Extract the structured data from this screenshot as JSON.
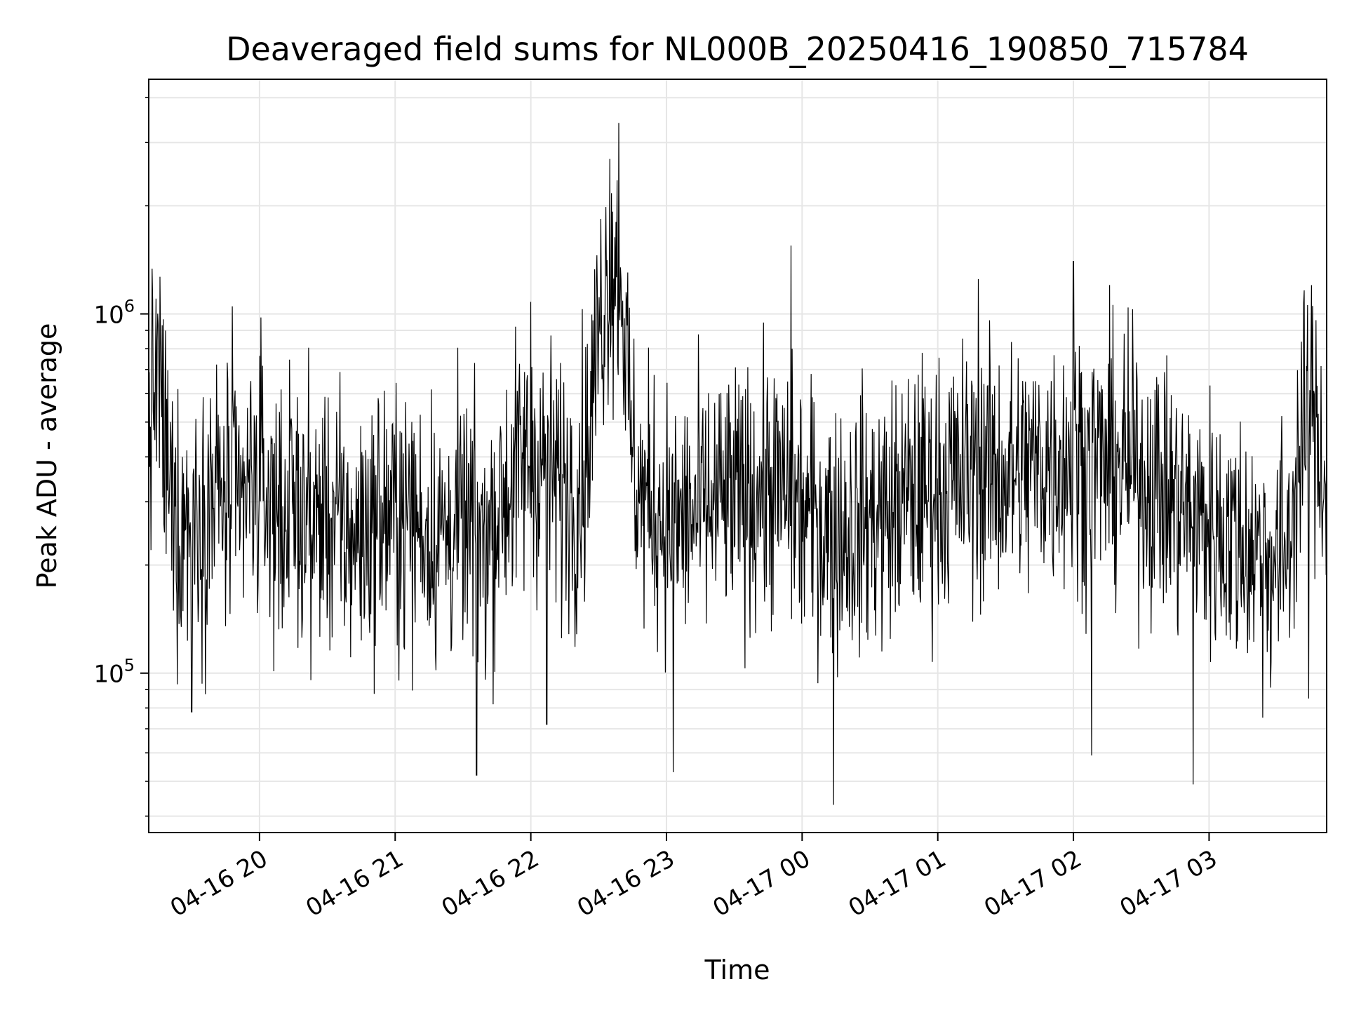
{
  "chart_data": {
    "type": "line",
    "title": "Deaveraged field sums for NL000B_20250416_190850_715784",
    "xlabel": "Time",
    "ylabel": "Peak ADU - average",
    "x_range": [
      "2025-04-16 19:11",
      "2025-04-17 03:52"
    ],
    "xticks": [
      {
        "time": "2025-04-16 20:00",
        "label": "04-16 20"
      },
      {
        "time": "2025-04-16 21:00",
        "label": "04-16 21"
      },
      {
        "time": "2025-04-16 22:00",
        "label": "04-16 22"
      },
      {
        "time": "2025-04-16 23:00",
        "label": "04-16 23"
      },
      {
        "time": "2025-04-17 00:00",
        "label": "04-17 00"
      },
      {
        "time": "2025-04-17 01:00",
        "label": "04-17 01"
      },
      {
        "time": "2025-04-17 02:00",
        "label": "04-17 02"
      },
      {
        "time": "2025-04-17 03:00",
        "label": "04-17 03"
      }
    ],
    "y_scale": "log",
    "ylim": [
      36000,
      4500000
    ],
    "yticks": [
      {
        "value": 100000,
        "base": "10",
        "exp": "5"
      },
      {
        "value": 1000000,
        "base": "10",
        "exp": "6"
      }
    ],
    "grid": true,
    "line_color": "#000000",
    "grid_color": "#e6e6e6",
    "series": [
      {
        "points": [
          [
            "2025-04-16 19:11",
            480000
          ],
          [
            "2025-04-16 19:15",
            700000
          ],
          [
            "2025-04-16 19:20",
            320000
          ],
          [
            "2025-04-16 19:25",
            250000
          ],
          [
            "2025-04-16 19:30",
            300000
          ],
          [
            "2025-04-16 19:35",
            280000
          ],
          [
            "2025-04-16 19:40",
            330000
          ],
          [
            "2025-04-16 19:45",
            300000
          ],
          [
            "2025-04-16 19:50",
            270000
          ],
          [
            "2025-04-16 19:55",
            320000
          ],
          [
            "2025-04-16 20:00",
            340000
          ],
          [
            "2025-04-16 20:05",
            300000
          ],
          [
            "2025-04-16 20:10",
            280000
          ],
          [
            "2025-04-16 20:15",
            290000
          ],
          [
            "2025-04-16 20:20",
            270000
          ],
          [
            "2025-04-16 20:25",
            260000
          ],
          [
            "2025-04-16 20:30",
            280000
          ],
          [
            "2025-04-16 20:35",
            250000
          ],
          [
            "2025-04-16 20:40",
            240000
          ],
          [
            "2025-04-16 20:45",
            250000
          ],
          [
            "2025-04-16 20:50",
            260000
          ],
          [
            "2025-04-16 20:55",
            270000
          ],
          [
            "2025-04-16 21:00",
            280000
          ],
          [
            "2025-04-16 21:05",
            270000
          ],
          [
            "2025-04-16 21:10",
            260000
          ],
          [
            "2025-04-16 21:15",
            250000
          ],
          [
            "2025-04-16 21:20",
            240000
          ],
          [
            "2025-04-16 21:25",
            250000
          ],
          [
            "2025-04-16 21:30",
            260000
          ],
          [
            "2025-04-16 21:35",
            240000
          ],
          [
            "2025-04-16 21:40",
            230000
          ],
          [
            "2025-04-16 21:45",
            280000
          ],
          [
            "2025-04-16 21:50",
            330000
          ],
          [
            "2025-04-16 21:55",
            370000
          ],
          [
            "2025-04-16 22:00",
            400000
          ],
          [
            "2025-04-16 22:05",
            380000
          ],
          [
            "2025-04-16 22:10",
            350000
          ],
          [
            "2025-04-16 22:15",
            330000
          ],
          [
            "2025-04-16 22:20",
            320000
          ],
          [
            "2025-04-16 22:25",
            420000
          ],
          [
            "2025-04-16 22:30",
            900000
          ],
          [
            "2025-04-16 22:35",
            1400000
          ],
          [
            "2025-04-16 22:40",
            1300000
          ],
          [
            "2025-04-16 22:45",
            380000
          ],
          [
            "2025-04-16 22:50",
            300000
          ],
          [
            "2025-04-16 22:55",
            290000
          ],
          [
            "2025-04-16 23:00",
            270000
          ],
          [
            "2025-04-16 23:05",
            260000
          ],
          [
            "2025-04-16 23:10",
            270000
          ],
          [
            "2025-04-16 23:15",
            280000
          ],
          [
            "2025-04-16 23:20",
            290000
          ],
          [
            "2025-04-16 23:25",
            300000
          ],
          [
            "2025-04-16 23:30",
            300000
          ],
          [
            "2025-04-16 23:35",
            310000
          ],
          [
            "2025-04-16 23:40",
            320000
          ],
          [
            "2025-04-16 23:45",
            330000
          ],
          [
            "2025-04-16 23:50",
            320000
          ],
          [
            "2025-04-16 23:55",
            300000
          ],
          [
            "2025-04-17 00:00",
            280000
          ],
          [
            "2025-04-17 00:05",
            270000
          ],
          [
            "2025-04-17 00:10",
            260000
          ],
          [
            "2025-04-17 00:15",
            250000
          ],
          [
            "2025-04-17 00:20",
            250000
          ],
          [
            "2025-04-17 00:25",
            260000
          ],
          [
            "2025-04-17 00:30",
            270000
          ],
          [
            "2025-04-17 00:35",
            270000
          ],
          [
            "2025-04-17 00:40",
            280000
          ],
          [
            "2025-04-17 00:45",
            300000
          ],
          [
            "2025-04-17 00:50",
            310000
          ],
          [
            "2025-04-17 00:55",
            320000
          ],
          [
            "2025-04-17 01:00",
            330000
          ],
          [
            "2025-04-17 01:05",
            340000
          ],
          [
            "2025-04-17 01:10",
            350000
          ],
          [
            "2025-04-17 01:15",
            360000
          ],
          [
            "2025-04-17 01:20",
            370000
          ],
          [
            "2025-04-17 01:25",
            360000
          ],
          [
            "2025-04-17 01:30",
            350000
          ],
          [
            "2025-04-17 01:35",
            360000
          ],
          [
            "2025-04-17 01:40",
            370000
          ],
          [
            "2025-04-17 01:45",
            380000
          ],
          [
            "2025-04-17 01:50",
            390000
          ],
          [
            "2025-04-17 01:55",
            400000
          ],
          [
            "2025-04-17 02:00",
            410000
          ],
          [
            "2025-04-17 02:05",
            400000
          ],
          [
            "2025-04-17 02:10",
            390000
          ],
          [
            "2025-04-17 02:15",
            380000
          ],
          [
            "2025-04-17 02:20",
            380000
          ],
          [
            "2025-04-17 02:25",
            370000
          ],
          [
            "2025-04-17 02:30",
            360000
          ],
          [
            "2025-04-17 02:35",
            340000
          ],
          [
            "2025-04-17 02:40",
            320000
          ],
          [
            "2025-04-17 02:45",
            300000
          ],
          [
            "2025-04-17 02:50",
            280000
          ],
          [
            "2025-04-17 02:55",
            270000
          ],
          [
            "2025-04-17 03:00",
            260000
          ],
          [
            "2025-04-17 03:05",
            250000
          ],
          [
            "2025-04-17 03:10",
            240000
          ],
          [
            "2025-04-17 03:15",
            230000
          ],
          [
            "2025-04-17 03:20",
            220000
          ],
          [
            "2025-04-17 03:25",
            210000
          ],
          [
            "2025-04-17 03:30",
            200000
          ],
          [
            "2025-04-17 03:35",
            230000
          ],
          [
            "2025-04-17 03:40",
            400000
          ],
          [
            "2025-04-17 03:45",
            550000
          ],
          [
            "2025-04-17 03:52",
            350000
          ]
        ],
        "extremes": [
          [
            "2025-04-16 19:48",
            1050000
          ],
          [
            "2025-04-16 19:30",
            78000
          ],
          [
            "2025-04-16 21:36",
            52000
          ],
          [
            "2025-04-16 22:00",
            1080000
          ],
          [
            "2025-04-16 22:07",
            72000
          ],
          [
            "2025-04-16 22:39",
            3400000
          ],
          [
            "2025-04-16 22:35",
            2700000
          ],
          [
            "2025-04-16 23:03",
            53000
          ],
          [
            "2025-04-16 23:55",
            1550000
          ],
          [
            "2025-04-17 00:14",
            43000
          ],
          [
            "2025-04-17 01:18",
            1250000
          ],
          [
            "2025-04-17 02:00",
            1400000
          ],
          [
            "2025-04-17 02:08",
            59000
          ],
          [
            "2025-04-17 02:53",
            49000
          ],
          [
            "2025-04-17 03:44",
            85000
          ]
        ]
      }
    ]
  }
}
